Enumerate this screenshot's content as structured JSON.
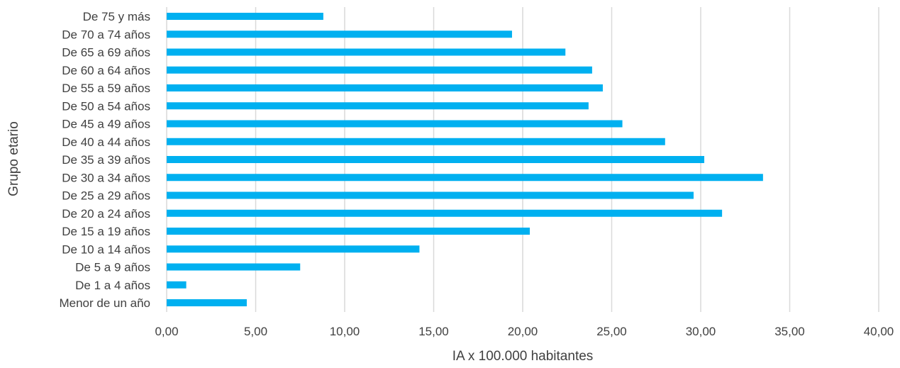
{
  "chart_data": {
    "type": "bar",
    "orientation": "horizontal",
    "title": "",
    "xlabel": "IA x 100.000 habitantes",
    "ylabel": "Grupo etario",
    "xlim": [
      0,
      40
    ],
    "x_ticks": [
      "0,00",
      "5,00",
      "10,00",
      "15,00",
      "20,00",
      "25,00",
      "30,00",
      "35,00",
      "40,00"
    ],
    "x_tick_values": [
      0,
      5,
      10,
      15,
      20,
      25,
      30,
      35,
      40
    ],
    "grid": true,
    "legend": "none",
    "bar_color": "#00b0f0",
    "grid_color": "#d9d9d9",
    "text_color": "#404040",
    "categories": [
      "De 75 y más",
      "De 70 a 74 años",
      "De 65 a 69 años",
      "De 60 a 64 años",
      "De 55 a 59 años",
      "De 50 a 54 años",
      "De 45 a 49 años",
      "De 40 a 44 años",
      "De 35 a 39 años",
      "De 30 a 34 años",
      "De 25 a 29 años",
      "De 20 a 24 años",
      "De 15 a 19 años",
      "De 10 a 14 años",
      "De 5 a 9 años",
      "De 1 a 4 años",
      "Menor de un año"
    ],
    "values": [
      8.8,
      19.4,
      22.4,
      23.9,
      24.5,
      23.7,
      25.6,
      28.0,
      30.2,
      33.5,
      29.6,
      31.2,
      20.4,
      14.2,
      7.5,
      1.1,
      4.5
    ]
  }
}
